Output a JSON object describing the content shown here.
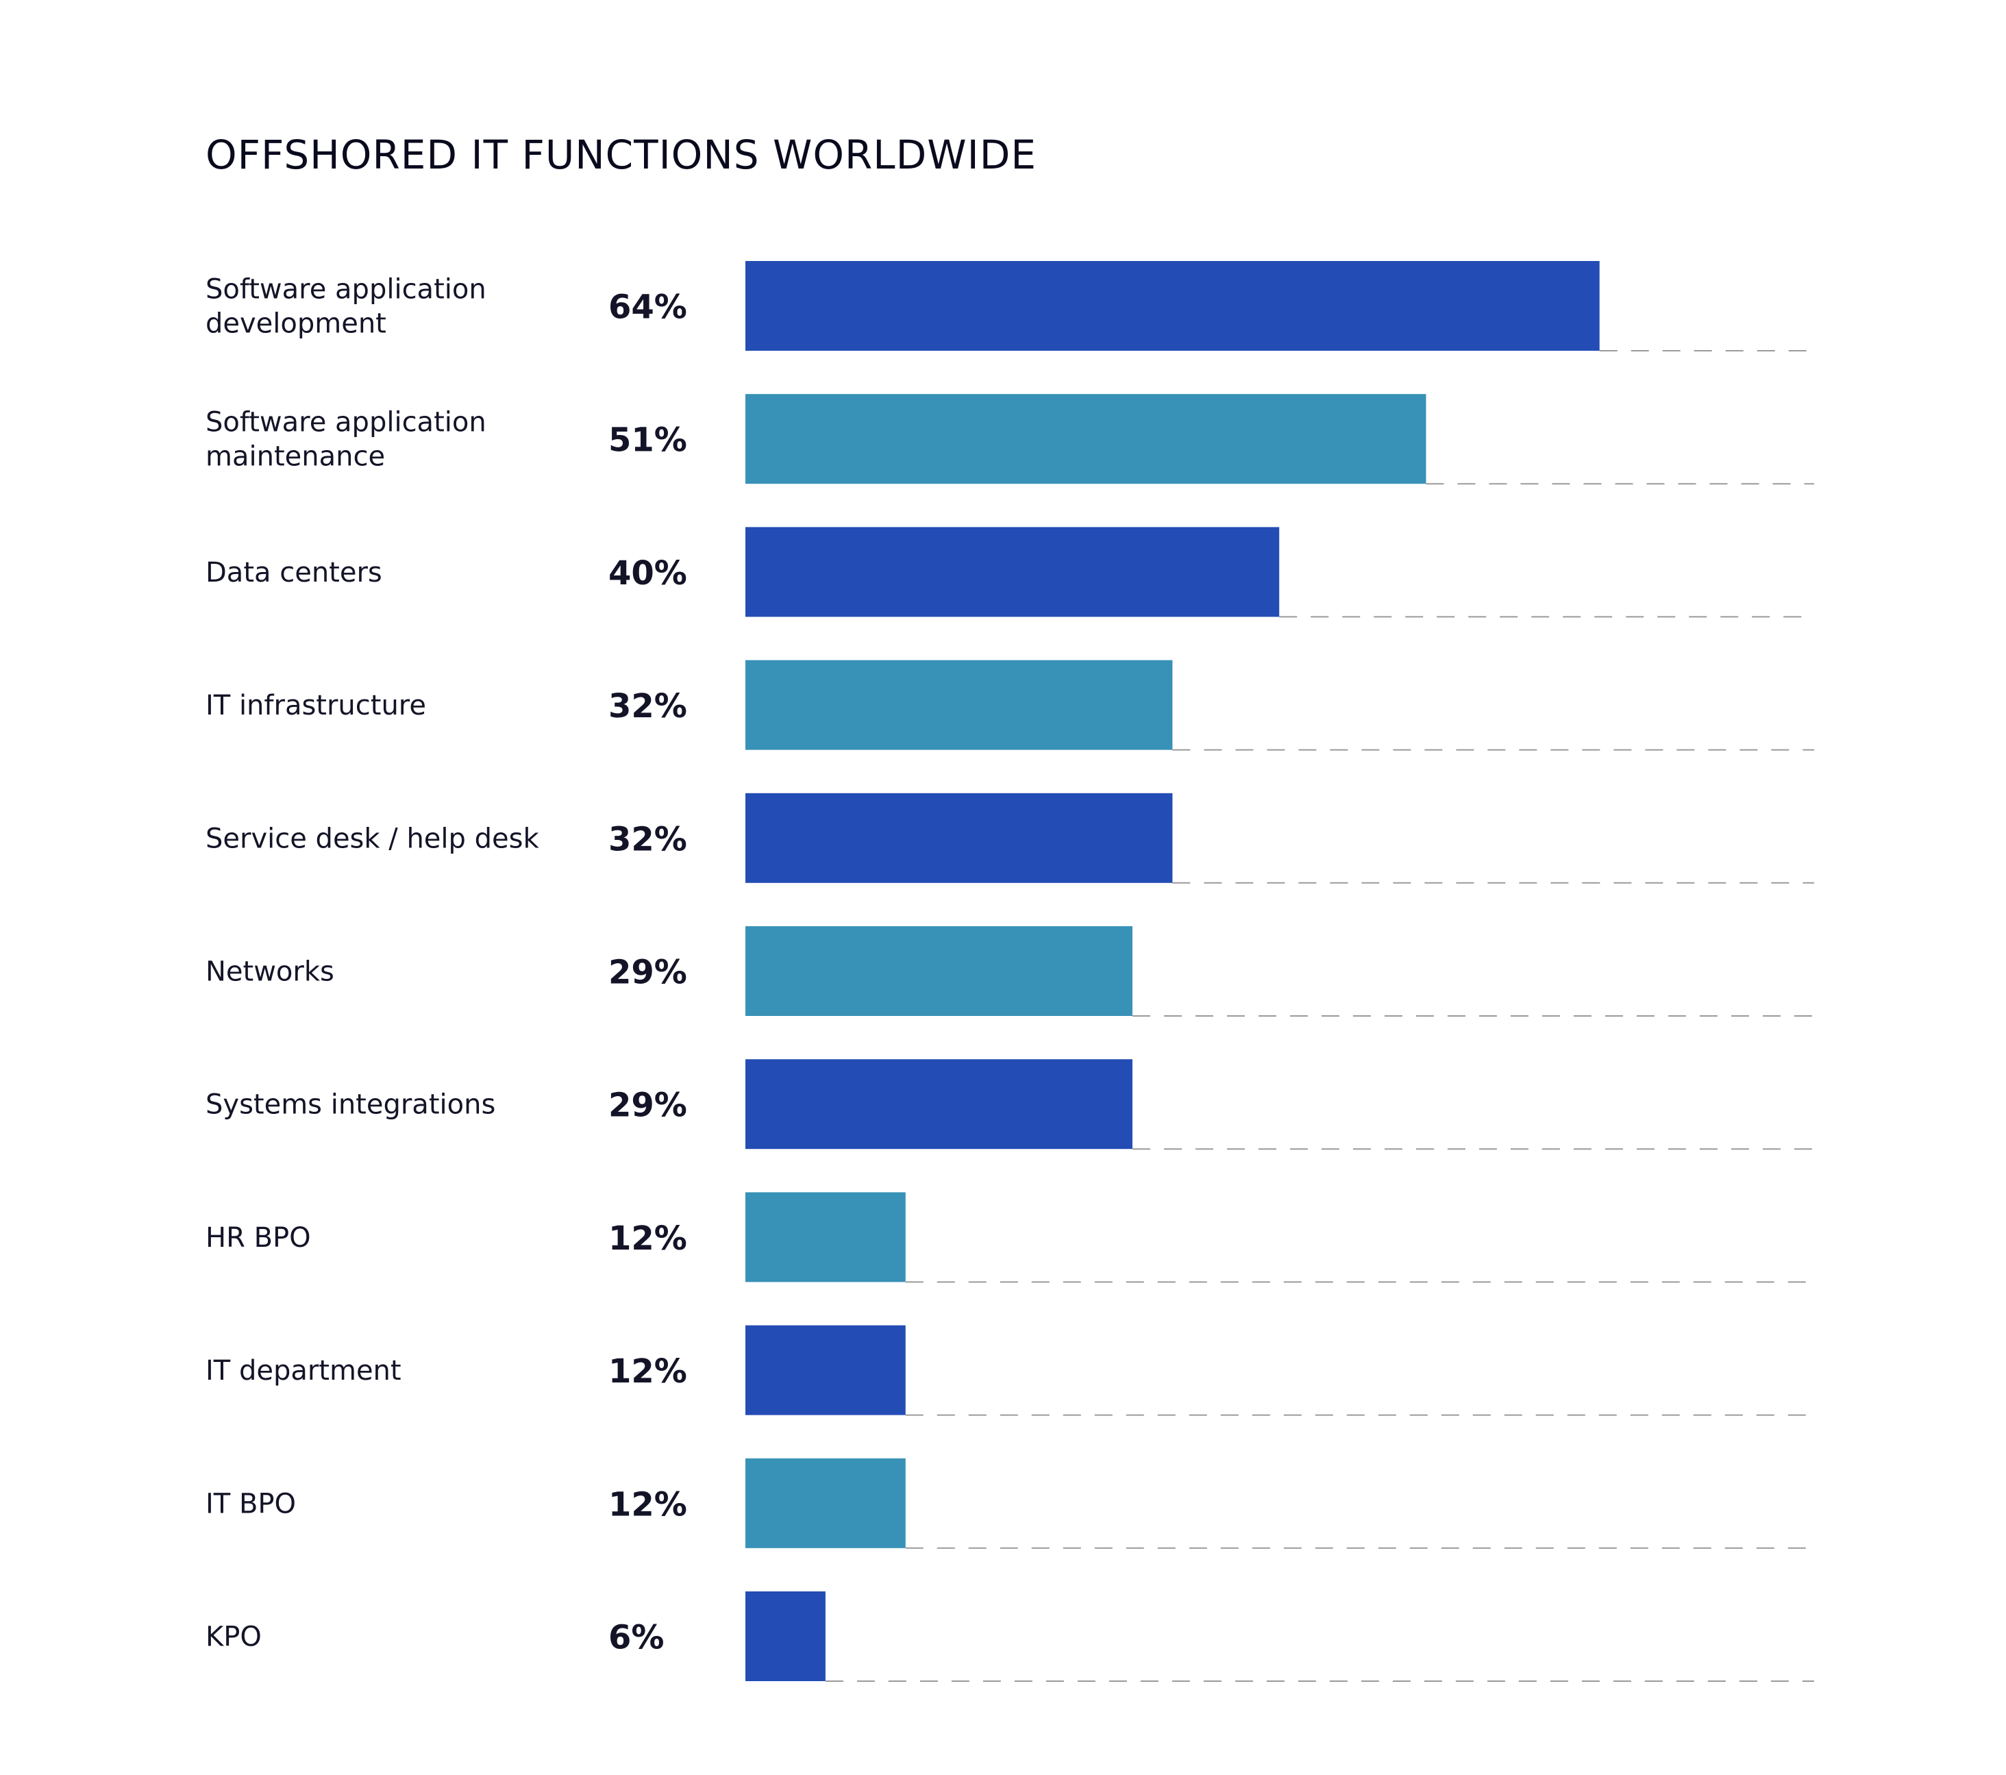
{
  "chart_data": {
    "type": "bar",
    "orientation": "horizontal",
    "title": "OFFSHORED IT FUNCTIONS WORLDWIDE",
    "categories": [
      "Software application development",
      "Software application maintenance",
      "Data centers",
      "IT infrastructure",
      "Service desk / help desk",
      "Networks",
      "Systems integrations",
      "HR BPO",
      "IT department",
      "IT BPO",
      "KPO"
    ],
    "category_lines": [
      [
        "Software application",
        "development"
      ],
      [
        "Software application",
        "maintenance"
      ],
      [
        "Data centers"
      ],
      [
        "IT infrastructure"
      ],
      [
        "Service desk / help desk"
      ],
      [
        "Networks"
      ],
      [
        "Systems integrations"
      ],
      [
        "HR BPO"
      ],
      [
        "IT department"
      ],
      [
        "IT BPO"
      ],
      [
        "KPO"
      ]
    ],
    "values": [
      64,
      51,
      40,
      32,
      32,
      29,
      29,
      12,
      12,
      12,
      6
    ],
    "value_labels": [
      "64%",
      "51%",
      "40%",
      "32%",
      "32%",
      "29%",
      "29%",
      "12%",
      "12%",
      "12%",
      "6%"
    ],
    "unit": "%",
    "xlim": [
      0,
      80
    ],
    "grid": "dashed guide line under each bar",
    "legend": "none",
    "colors": {
      "bar_primary": "#234cb4",
      "bar_secondary": "#3891b7",
      "guide_line": "#9a9a9a",
      "text": "#141428"
    }
  }
}
